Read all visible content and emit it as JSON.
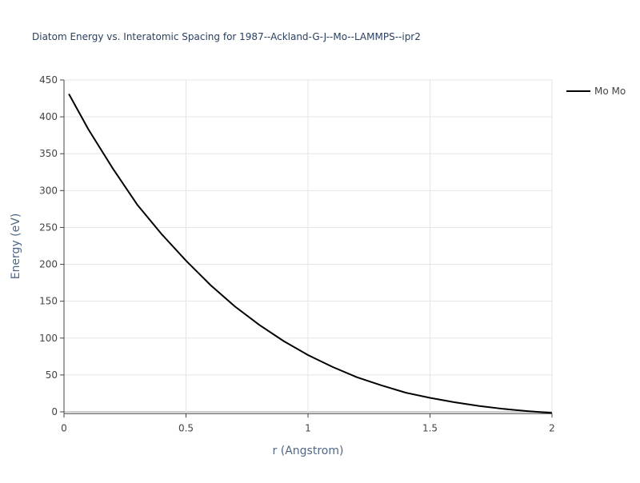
{
  "chart_data": {
    "type": "line",
    "title": "Diatom Energy vs. Interatomic Spacing for 1987--Ackland-G-J--Mo--LAMMPS--ipr2",
    "x_label": "r (Angstrom)",
    "y_label": "Energy (eV)",
    "xlim": [
      0,
      2
    ],
    "ylim": [
      -2.5,
      450
    ],
    "xticks": [
      0,
      0.5,
      1,
      1.5,
      2
    ],
    "yticks": [
      0,
      50,
      100,
      150,
      200,
      250,
      300,
      350,
      400,
      450
    ],
    "grid": true,
    "legend": "top-right",
    "x": [
      0.02,
      0.1,
      0.2,
      0.3,
      0.4,
      0.5,
      0.6,
      0.7,
      0.8,
      0.9,
      1.0,
      1.1,
      1.2,
      1.3,
      1.4,
      1.5,
      1.6,
      1.7,
      1.8,
      1.9,
      2.0
    ],
    "series": [
      {
        "name": "Mo Mo",
        "color": "#000000",
        "values": [
          431,
          383,
          330,
          281,
          241,
          205,
          172,
          143,
          118,
          96,
          77,
          61,
          47,
          36,
          26,
          19,
          13,
          8,
          4,
          1,
          -1.5
        ]
      }
    ]
  }
}
